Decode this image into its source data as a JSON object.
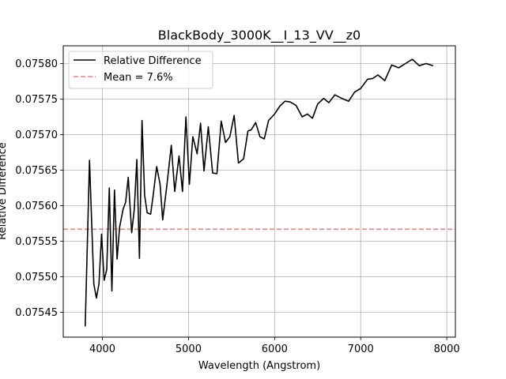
{
  "chart_data": {
    "type": "line",
    "title": "BlackBody_3000K__I_13_VV__z0",
    "xlabel": "Wavelength (Angstrom)",
    "ylabel": "Relative Difference",
    "xlim": [
      3545,
      8100
    ],
    "ylim": [
      0.075415,
      0.075825
    ],
    "xticks": [
      4000,
      5000,
      6000,
      7000,
      8000
    ],
    "xtick_labels": [
      "4000",
      "5000",
      "6000",
      "7000",
      "8000"
    ],
    "yticks": [
      0.07545,
      0.0755,
      0.07555,
      0.0756,
      0.07565,
      0.0757,
      0.07575,
      0.0758
    ],
    "ytick_labels": [
      "0.07545",
      "0.07550",
      "0.07555",
      "0.07560",
      "0.07565",
      "0.07570",
      "0.07575",
      "0.07580"
    ],
    "grid": true,
    "legend_position": "top-left",
    "legend": [
      "Relative Difference",
      "Mean = 7.6%"
    ],
    "colors": {
      "series": "#000000",
      "mean": "#f08080",
      "grid": "#b0b0b0"
    },
    "mean_value": 0.075567,
    "series": [
      {
        "name": "Relative Difference",
        "x": [
          3800,
          3850,
          3900,
          3930,
          3960,
          3990,
          4020,
          4050,
          4080,
          4110,
          4140,
          4170,
          4200,
          4240,
          4270,
          4300,
          4340,
          4370,
          4400,
          4430,
          4460,
          4490,
          4520,
          4560,
          4590,
          4630,
          4670,
          4700,
          4750,
          4800,
          4840,
          4890,
          4930,
          4970,
          5010,
          5050,
          5100,
          5140,
          5180,
          5230,
          5280,
          5330,
          5380,
          5430,
          5480,
          5530,
          5580,
          5640,
          5690,
          5730,
          5780,
          5830,
          5880,
          5930,
          6000,
          6060,
          6120,
          6180,
          6250,
          6320,
          6380,
          6440,
          6500,
          6570,
          6630,
          6700,
          6780,
          6860,
          6930,
          7000,
          7080,
          7140,
          7200,
          7280,
          7360,
          7440,
          7520,
          7600,
          7680,
          7760,
          7840
        ],
        "y": [
          0.07543,
          0.075664,
          0.07549,
          0.07547,
          0.07549,
          0.07556,
          0.075495,
          0.07551,
          0.075625,
          0.07548,
          0.075622,
          0.075525,
          0.07557,
          0.075595,
          0.075605,
          0.07564,
          0.075562,
          0.075595,
          0.075665,
          0.075526,
          0.07572,
          0.075615,
          0.07559,
          0.075588,
          0.075615,
          0.075655,
          0.07563,
          0.07558,
          0.07563,
          0.075685,
          0.07562,
          0.07567,
          0.07562,
          0.075725,
          0.07563,
          0.075697,
          0.075673,
          0.075716,
          0.075649,
          0.075711,
          0.075646,
          0.075645,
          0.075719,
          0.075689,
          0.075697,
          0.075727,
          0.07566,
          0.075666,
          0.075705,
          0.075707,
          0.075717,
          0.075697,
          0.075694,
          0.07572,
          0.075729,
          0.07574,
          0.075747,
          0.075746,
          0.075741,
          0.075725,
          0.075729,
          0.075723,
          0.075743,
          0.075751,
          0.075745,
          0.075756,
          0.075751,
          0.075747,
          0.07576,
          0.075765,
          0.075778,
          0.075779,
          0.075784,
          0.075776,
          0.075798,
          0.075794,
          0.0758,
          0.075806,
          0.075797,
          0.0758,
          0.075797
        ]
      }
    ]
  }
}
